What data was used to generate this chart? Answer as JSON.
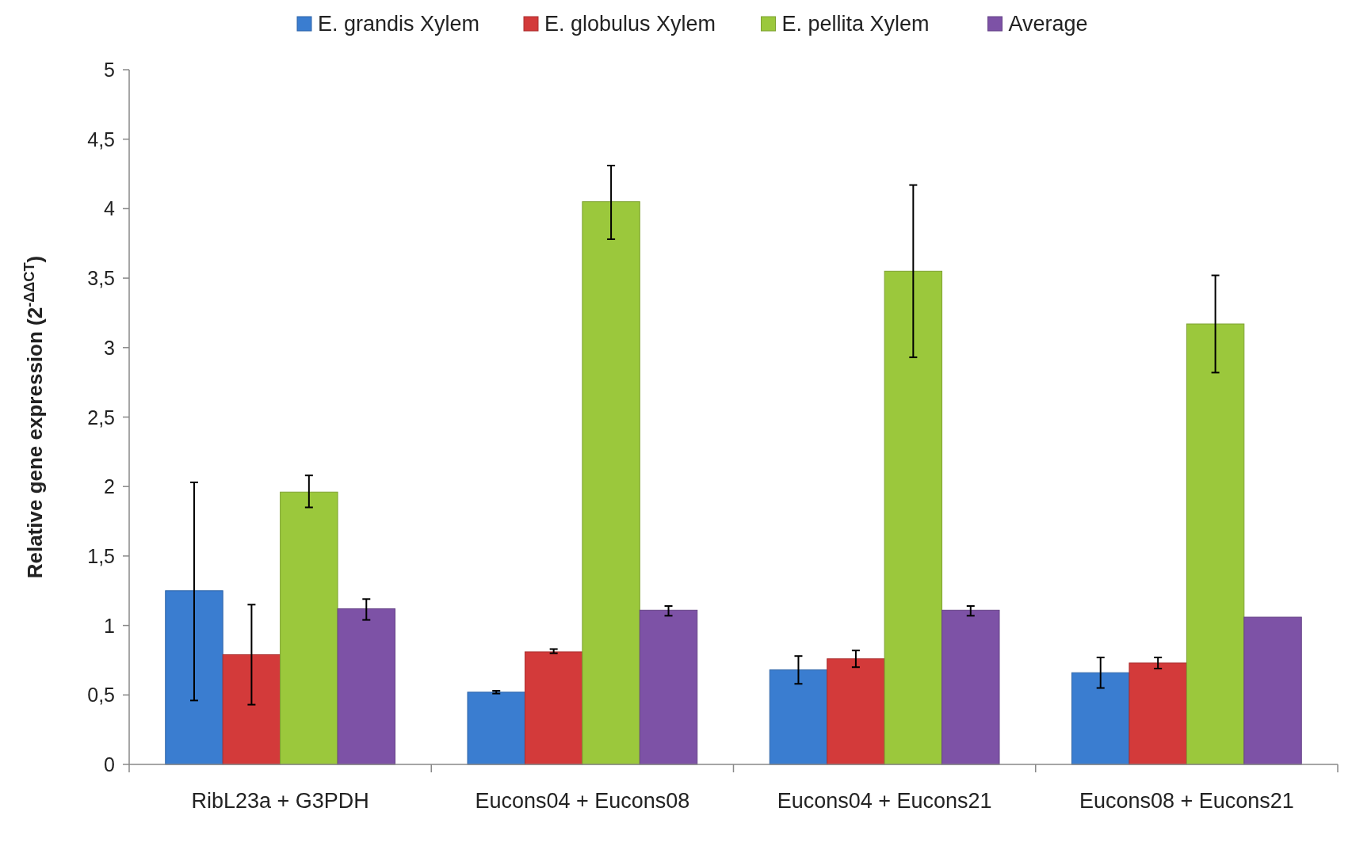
{
  "chart_data": {
    "type": "bar",
    "ylabel": "Relative gene expression (2$^{-ΔΔCT}$)",
    "categories": [
      "RibL23a + G3PDH",
      "Eucons04 + Eucons08",
      "Eucons04 + Eucons21",
      "Eucons08 + Eucons21"
    ],
    "series": [
      {
        "name": "E. grandis Xylem",
        "color": "#3a7dd0",
        "values": [
          1.25,
          0.52,
          0.68,
          0.66
        ],
        "errors": [
          [
            0.46,
            2.03
          ],
          [
            0.51,
            0.53
          ],
          [
            0.58,
            0.78
          ],
          [
            0.55,
            0.77
          ]
        ]
      },
      {
        "name": "E. globulus Xylem",
        "color": "#d33a3a",
        "values": [
          0.79,
          0.81,
          0.76,
          0.73
        ],
        "errors": [
          [
            0.43,
            1.15
          ],
          [
            0.8,
            0.83
          ],
          [
            0.7,
            0.82
          ],
          [
            0.69,
            0.77
          ]
        ]
      },
      {
        "name": "E. pellita Xylem",
        "color": "#9bc83c",
        "values": [
          1.96,
          4.05,
          3.55,
          3.17
        ],
        "errors": [
          [
            1.85,
            2.08
          ],
          [
            3.78,
            4.31
          ],
          [
            2.93,
            4.17
          ],
          [
            2.82,
            3.52
          ]
        ]
      },
      {
        "name": "Average",
        "color": "#7d52a6",
        "values": [
          1.12,
          1.11,
          1.11,
          1.06
        ],
        "errors": [
          [
            1.04,
            1.19
          ],
          [
            1.07,
            1.14
          ],
          [
            1.07,
            1.14
          ],
          null
        ]
      }
    ],
    "ylim": [
      0,
      5
    ],
    "yticks": [
      0,
      {
        "value": 0.5,
        "label": "0,5"
      },
      1,
      {
        "value": 1.5,
        "label": "1,5"
      },
      2,
      {
        "value": 2.5,
        "label": "2,5"
      },
      3,
      {
        "value": 3.5,
        "label": "3,5"
      },
      4,
      {
        "value": 4.5,
        "label": "4,5"
      },
      5
    ],
    "grid": false,
    "legend": "top"
  }
}
